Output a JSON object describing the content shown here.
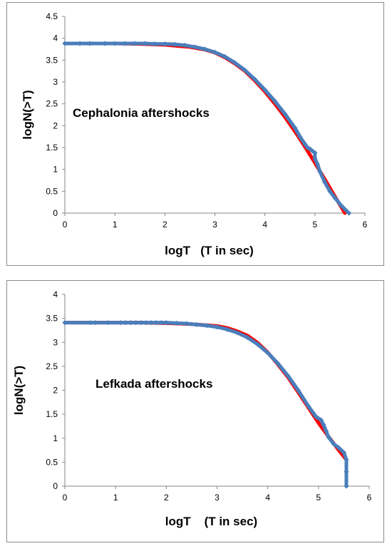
{
  "chart_data": [
    {
      "type": "scatter",
      "annotation": "Cephalonia aftershocks",
      "xlabel": "logT   (T in sec)",
      "ylabel": "logN(>T)",
      "xlim": [
        0,
        6
      ],
      "ylim": [
        0,
        4.5
      ],
      "x_ticks": [
        "0",
        "1",
        "2",
        "3",
        "4",
        "5",
        "6"
      ],
      "y_ticks": [
        "0",
        "0.5",
        "1",
        "1.5",
        "2",
        "2.5",
        "3",
        "3.5",
        "4",
        "4.5"
      ],
      "grid": false,
      "colors": {
        "fit": "#ff0000",
        "data": "#4a7ebb"
      },
      "series": [
        {
          "kind": "fit",
          "x": [
            0,
            0.5,
            1,
            1.5,
            2,
            2.5,
            2.8,
            3.0,
            3.2,
            3.4,
            3.6,
            3.8,
            4.0,
            4.2,
            4.4,
            4.6,
            4.8,
            5.0,
            5.2,
            5.4,
            5.6
          ],
          "y": [
            3.88,
            3.88,
            3.88,
            3.87,
            3.85,
            3.8,
            3.74,
            3.67,
            3.56,
            3.42,
            3.25,
            3.03,
            2.78,
            2.5,
            2.2,
            1.87,
            1.52,
            1.15,
            0.77,
            0.38,
            0.0
          ]
        },
        {
          "kind": "data",
          "x": [
            0,
            0.3,
            0.5,
            0.8,
            1.0,
            1.2,
            1.4,
            1.6,
            1.8,
            2.0,
            2.2,
            2.4,
            2.6,
            2.8,
            3.0,
            3.2,
            3.4,
            3.6,
            3.8,
            4.0,
            4.2,
            4.4,
            4.6,
            4.7,
            4.8,
            4.85,
            4.9,
            4.95,
            5.0,
            5.0,
            5.05,
            5.1,
            5.2,
            5.3,
            5.4,
            5.52,
            5.68
          ],
          "y": [
            3.88,
            3.88,
            3.88,
            3.88,
            3.88,
            3.88,
            3.88,
            3.88,
            3.87,
            3.87,
            3.86,
            3.84,
            3.8,
            3.75,
            3.68,
            3.58,
            3.44,
            3.27,
            3.06,
            2.82,
            2.56,
            2.27,
            1.95,
            1.75,
            1.58,
            1.5,
            1.47,
            1.42,
            1.38,
            1.25,
            1.12,
            0.95,
            0.7,
            0.5,
            0.35,
            0.18,
            0.0
          ]
        }
      ]
    },
    {
      "type": "scatter",
      "annotation": "Lefkada aftershocks",
      "xlabel": "logT    (T in sec)",
      "ylabel": "logN(>T)",
      "xlim": [
        0,
        6
      ],
      "ylim": [
        0,
        4
      ],
      "x_ticks": [
        "0",
        "1",
        "2",
        "3",
        "4",
        "5",
        "6"
      ],
      "y_ticks": [
        "0",
        "0.5",
        "1",
        "1.5",
        "2",
        "2.5",
        "3",
        "3.5",
        "4"
      ],
      "grid": false,
      "colors": {
        "fit": "#ff0000",
        "data": "#4a7ebb"
      },
      "series": [
        {
          "kind": "fit",
          "x": [
            0,
            0.5,
            1,
            1.5,
            2,
            2.5,
            3.0,
            3.2,
            3.4,
            3.6,
            3.8,
            4.0,
            4.2,
            4.4,
            4.6,
            4.8,
            5.0,
            5.2,
            5.4,
            5.55
          ],
          "y": [
            3.41,
            3.41,
            3.41,
            3.41,
            3.4,
            3.38,
            3.34,
            3.3,
            3.23,
            3.14,
            2.99,
            2.79,
            2.54,
            2.27,
            1.96,
            1.64,
            1.32,
            1.03,
            0.75,
            0.55
          ]
        },
        {
          "kind": "data",
          "x": [
            0,
            0.5,
            0.6,
            0.85,
            1.1,
            1.2,
            1.3,
            1.4,
            1.5,
            1.6,
            1.7,
            1.8,
            1.9,
            2.0,
            2.2,
            2.4,
            2.6,
            2.8,
            3.0,
            3.2,
            3.4,
            3.6,
            3.8,
            4.0,
            4.2,
            4.4,
            4.6,
            4.8,
            4.95,
            5.05,
            5.1,
            5.15,
            5.2,
            5.3,
            5.4,
            5.5,
            5.55,
            5.55,
            5.55
          ],
          "y": [
            3.41,
            3.41,
            3.41,
            3.41,
            3.41,
            3.41,
            3.41,
            3.41,
            3.41,
            3.41,
            3.41,
            3.41,
            3.41,
            3.41,
            3.4,
            3.39,
            3.37,
            3.35,
            3.32,
            3.27,
            3.2,
            3.1,
            2.96,
            2.78,
            2.56,
            2.3,
            2.0,
            1.67,
            1.45,
            1.38,
            1.28,
            1.15,
            1.02,
            0.88,
            0.8,
            0.7,
            0.55,
            0.3,
            0.0
          ]
        }
      ]
    }
  ]
}
